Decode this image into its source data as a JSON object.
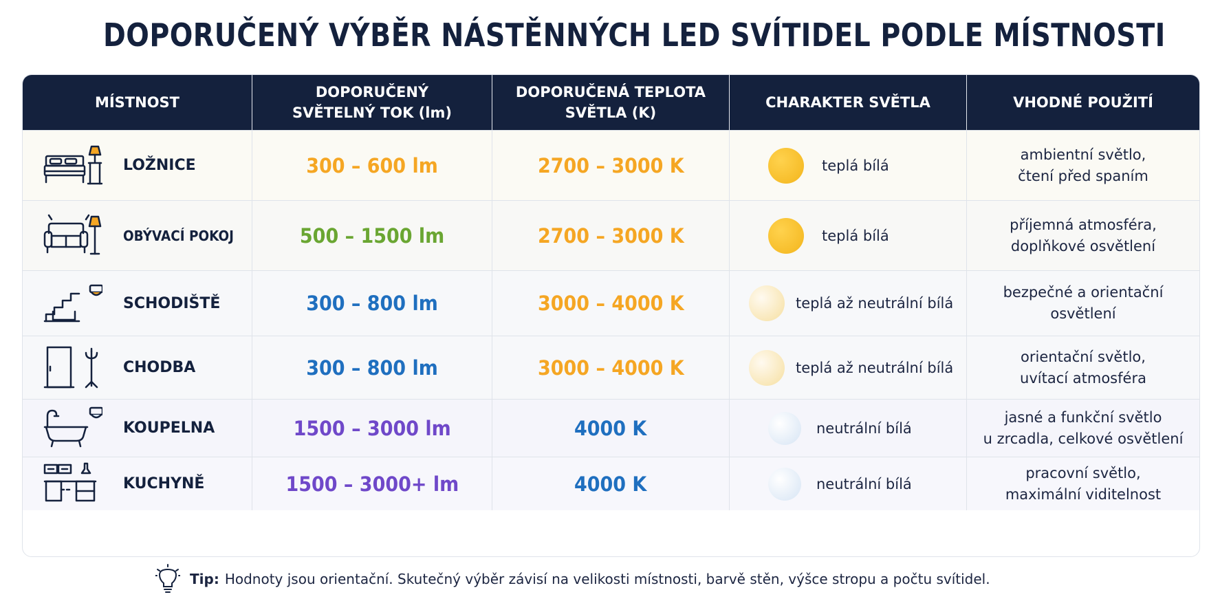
{
  "title": "DOPORUČENÝ VÝBĚR NÁSTĚNNÝCH LED SVÍTIDEL PODLE MÍSTNOSTI",
  "headers": {
    "room": "MÍSTNOST",
    "flux": "DOPORUČENÝ\nSVĚTELNÝ TOK (lm)",
    "temperature": "DOPORUČENÁ TEPLOTA\nSVĚTLA (K)",
    "character": "CHARAKTER SVĚTLA",
    "use": "VHODNÉ POUŽITÍ"
  },
  "colors": {
    "header_bg": "#14213d",
    "orange": "#f5a623",
    "green": "#6aa632",
    "blue": "#1f6fbf",
    "purple": "#6f48c9"
  },
  "rows": [
    {
      "icon": "bed-lamp-icon",
      "room": "LOŽNICE",
      "flux": "300 – 600 lm",
      "temperature": "2700 – 3000 K",
      "character": "teplá bílá",
      "use": "ambientní světlo,\nčtení před spaním"
    },
    {
      "icon": "sofa-lamp-icon",
      "room": "OBÝVACÍ POKOJ",
      "flux": "500 – 1500 lm",
      "temperature": "2700 – 3000 K",
      "character": "teplá bílá",
      "use": "příjemná atmosféra,\ndoplňkové osvětlení"
    },
    {
      "icon": "stairs-light-icon",
      "room": "SCHODIŠTĚ",
      "flux": "300 – 800 lm",
      "temperature": "3000 – 4000 K",
      "character": "teplá až neutrální bílá",
      "use": "bezpečné a orientační\nosvětlení"
    },
    {
      "icon": "door-coat-rack-icon",
      "room": "CHODBA",
      "flux": "300 – 800 lm",
      "temperature": "3000 – 4000 K",
      "character": "teplá až neutrální bílá",
      "use": "orientační světlo,\nuvítací atmosféra"
    },
    {
      "icon": "bathtub-light-icon",
      "room": "KOUPELNA",
      "flux": "1500 – 3000 lm",
      "temperature": "4000 K",
      "character": "neutrální bílá",
      "use": "jasné a funkční světlo\nu zrcadla, celkové osvětlení"
    },
    {
      "icon": "kitchen-icon",
      "room": "KUCHYNĚ",
      "flux": "1500 – 3000+ lm",
      "temperature": "4000 K",
      "character": "neutrální bílá",
      "use": "pracovní světlo,\nmaximální viditelnost"
    }
  ],
  "tip": {
    "icon": "lightbulb-icon",
    "label": "Tip:",
    "text": "Hodnoty jsou orientační. Skutečný výběr závisí na velikosti místnosti, barvě stěn, výšce stropu a počtu svítidel."
  }
}
